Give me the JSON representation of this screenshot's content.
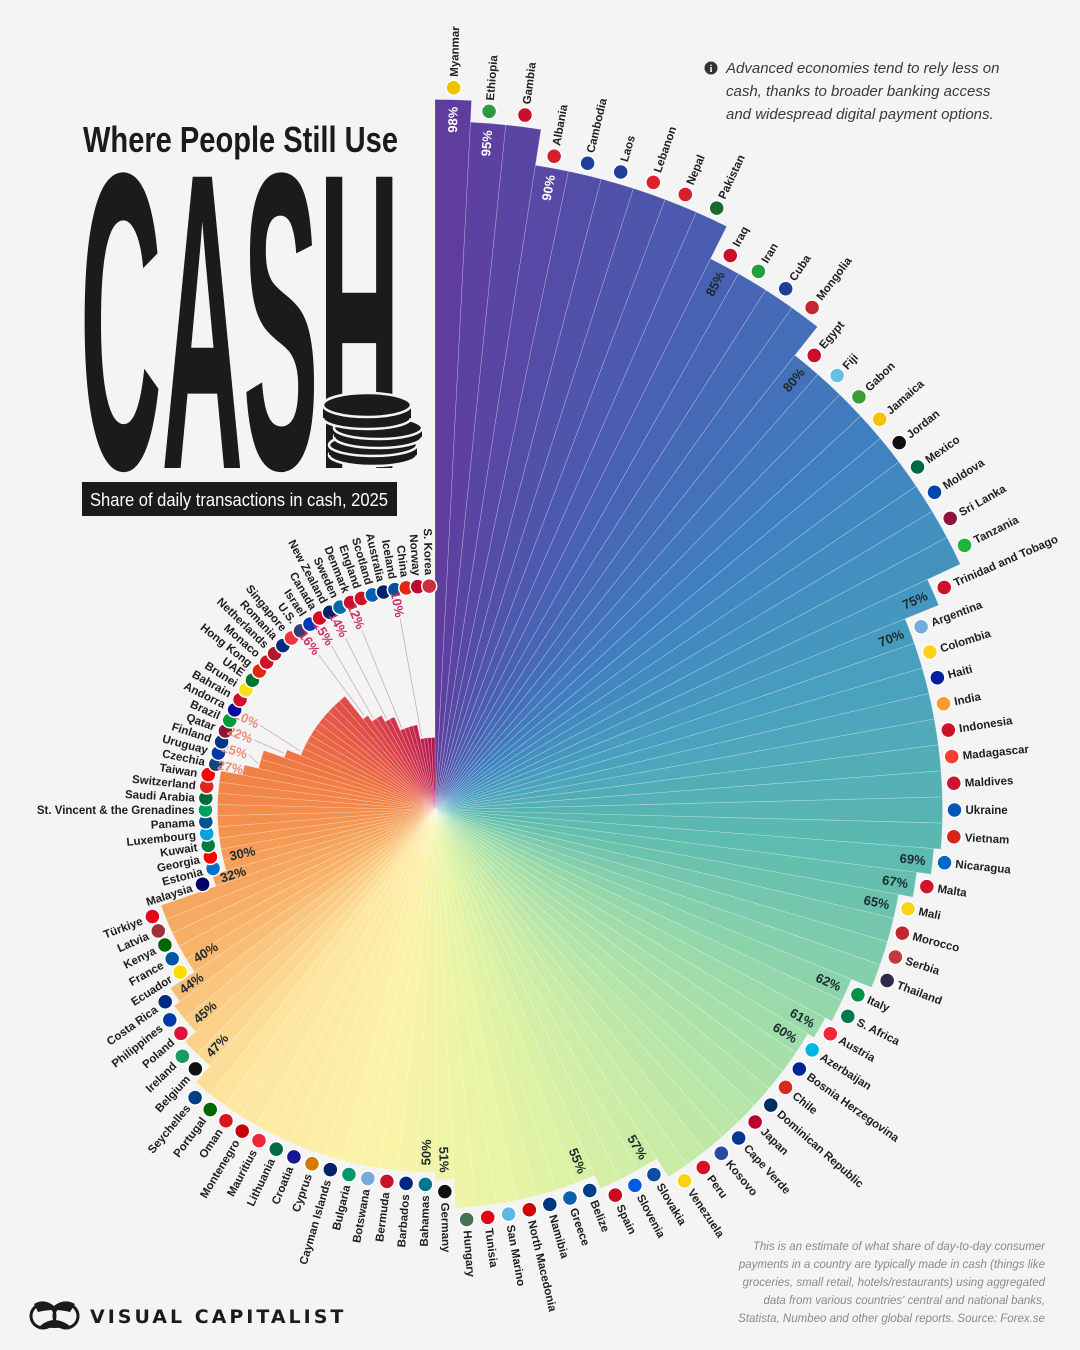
{
  "header": {
    "title_line": "Where People Still Use",
    "title_big": "CASH",
    "subtitle": "Share of daily transactions in cash, 2025"
  },
  "note": {
    "icon": "info-icon",
    "lines": [
      "Advanced economies tend to rely less on",
      "cash, thanks to broader banking access",
      "and widespread digital payment options."
    ]
  },
  "footer": {
    "lines": [
      "This is an estimate of what share of day-to-day consumer",
      "payments in a country are typically made in cash (things like",
      "groceries, small retail, hotels/restaurants) using aggregated",
      "data from various countries' central and national banks,",
      "Statista, Numbeo and other global reports. Source: Forex.se"
    ],
    "brand": "VISUAL CAPITALIST"
  },
  "chart_data": {
    "type": "radial-bar",
    "title": "Share of daily transactions in cash, 2025",
    "unit": "%",
    "value_range": [
      0,
      100
    ],
    "color_stops": [
      "#5e3d9e",
      "#4a5db0",
      "#3f80c0",
      "#48a0bf",
      "#5ebcae",
      "#9edcaa",
      "#c6eba6",
      "#e6f5a4",
      "#fcf2a8",
      "#fde6a0",
      "#f8b46a",
      "#f4944f",
      "#ef7a42",
      "#e65a46",
      "#d2344c",
      "#b0174e"
    ],
    "countries": [
      {
        "name": "Myanmar",
        "value": 98,
        "flag": "#f2c200"
      },
      {
        "name": "Ethiopia",
        "value": 95,
        "flag": "#2e9a3e"
      },
      {
        "name": "Gambia",
        "value": 95,
        "flag": "#c8102e"
      },
      {
        "name": "Albania",
        "value": 90,
        "flag": "#d4202a"
      },
      {
        "name": "Cambodia",
        "value": 90,
        "flag": "#1e3f9a"
      },
      {
        "name": "Laos",
        "value": 90,
        "flag": "#1e3f9a"
      },
      {
        "name": "Lebanon",
        "value": 90,
        "flag": "#e0202a"
      },
      {
        "name": "Nepal",
        "value": 90,
        "flag": "#d4202a"
      },
      {
        "name": "Pakistan",
        "value": 90,
        "flag": "#1c6b2c"
      },
      {
        "name": "Iraq",
        "value": 85,
        "flag": "#c8102e"
      },
      {
        "name": "Iran",
        "value": 85,
        "flag": "#239f40"
      },
      {
        "name": "Cuba",
        "value": 85,
        "flag": "#1e3f9a"
      },
      {
        "name": "Mongolia",
        "value": 85,
        "flag": "#c4272f"
      },
      {
        "name": "Egypt",
        "value": 80,
        "flag": "#c8102e"
      },
      {
        "name": "Fiji",
        "value": 80,
        "flag": "#68bfe5"
      },
      {
        "name": "Gabon",
        "value": 80,
        "flag": "#3a9d3a"
      },
      {
        "name": "Jamaica",
        "value": 80,
        "flag": "#f5c400"
      },
      {
        "name": "Jordan",
        "value": 80,
        "flag": "#111111"
      },
      {
        "name": "Mexico",
        "value": 80,
        "flag": "#006847"
      },
      {
        "name": "Moldova",
        "value": 80,
        "flag": "#0046ae"
      },
      {
        "name": "Sri Lanka",
        "value": 80,
        "flag": "#8d153a"
      },
      {
        "name": "Tanzania",
        "value": 80,
        "flag": "#1eb53a"
      },
      {
        "name": "Trinidad and Tobago",
        "value": 75,
        "flag": "#ce1126"
      },
      {
        "name": "Argentina",
        "value": 70,
        "flag": "#74acdf"
      },
      {
        "name": "Colombia",
        "value": 70,
        "flag": "#fcd116"
      },
      {
        "name": "Haiti",
        "value": 70,
        "flag": "#00209f"
      },
      {
        "name": "India",
        "value": 70,
        "flag": "#ff9933"
      },
      {
        "name": "Indonesia",
        "value": 70,
        "flag": "#ce1126"
      },
      {
        "name": "Madagascar",
        "value": 70,
        "flag": "#fc3d32"
      },
      {
        "name": "Maldives",
        "value": 70,
        "flag": "#d21034"
      },
      {
        "name": "Ukraine",
        "value": 70,
        "flag": "#0057b7"
      },
      {
        "name": "Vietnam",
        "value": 70,
        "flag": "#da251d"
      },
      {
        "name": "Nicaragua",
        "value": 69,
        "flag": "#0067c6"
      },
      {
        "name": "Malta",
        "value": 67,
        "flag": "#cf142b"
      },
      {
        "name": "Mali",
        "value": 65,
        "flag": "#fcd116"
      },
      {
        "name": "Morocco",
        "value": 65,
        "flag": "#c1272d"
      },
      {
        "name": "Serbia",
        "value": 65,
        "flag": "#c6363c"
      },
      {
        "name": "Thailand",
        "value": 65,
        "flag": "#2d2a4a"
      },
      {
        "name": "Italy",
        "value": 62,
        "flag": "#009246"
      },
      {
        "name": "S. Africa",
        "value": 62,
        "flag": "#007a4d"
      },
      {
        "name": "Austria",
        "value": 61,
        "flag": "#ed2939"
      },
      {
        "name": "Azerbaijan",
        "value": 60,
        "flag": "#00b5e2"
      },
      {
        "name": "Bosnia Herzegovina",
        "value": 60,
        "flag": "#002395"
      },
      {
        "name": "Chile",
        "value": 60,
        "flag": "#d52b1e"
      },
      {
        "name": "Dominican Republic",
        "value": 60,
        "flag": "#002d62"
      },
      {
        "name": "Japan",
        "value": 60,
        "flag": "#bc002d"
      },
      {
        "name": "Cape Verde",
        "value": 60,
        "flag": "#003893"
      },
      {
        "name": "Kosovo",
        "value": 60,
        "flag": "#244aa5"
      },
      {
        "name": "Peru",
        "value": 60,
        "flag": "#d91023"
      },
      {
        "name": "Venezuela",
        "value": 60,
        "flag": "#fcd116"
      },
      {
        "name": "Slovakia",
        "value": 57,
        "flag": "#0b4ea2"
      },
      {
        "name": "Slovenia",
        "value": 57,
        "flag": "#005ce5"
      },
      {
        "name": "Spain",
        "value": 57,
        "flag": "#c60b1e"
      },
      {
        "name": "Belize",
        "value": 55,
        "flag": "#003f87"
      },
      {
        "name": "Greece",
        "value": 55,
        "flag": "#0d5eaf"
      },
      {
        "name": "Namibia",
        "value": 55,
        "flag": "#003580"
      },
      {
        "name": "North Macedonia",
        "value": 55,
        "flag": "#d20000"
      },
      {
        "name": "San Marino",
        "value": 55,
        "flag": "#5eb6e4"
      },
      {
        "name": "Tunisia",
        "value": 55,
        "flag": "#e70013"
      },
      {
        "name": "Hungary",
        "value": 55,
        "flag": "#477050"
      },
      {
        "name": "Germany",
        "value": 51,
        "flag": "#111111"
      },
      {
        "name": "Bahamas",
        "value": 50,
        "flag": "#00778b"
      },
      {
        "name": "Barbados",
        "value": 50,
        "flag": "#00267f"
      },
      {
        "name": "Bermuda",
        "value": 50,
        "flag": "#c8102e"
      },
      {
        "name": "Botswana",
        "value": 50,
        "flag": "#75aadb"
      },
      {
        "name": "Bulgaria",
        "value": 50,
        "flag": "#00966e"
      },
      {
        "name": "Cayman Islands",
        "value": 50,
        "flag": "#012169"
      },
      {
        "name": "Cyprus",
        "value": 50,
        "flag": "#d57800"
      },
      {
        "name": "Croatia",
        "value": 50,
        "flag": "#171796"
      },
      {
        "name": "Lithuania",
        "value": 50,
        "flag": "#006a44"
      },
      {
        "name": "Mauritius",
        "value": 50,
        "flag": "#ea2839"
      },
      {
        "name": "Montenegro",
        "value": 50,
        "flag": "#c40308"
      },
      {
        "name": "Oman",
        "value": 50,
        "flag": "#db161b"
      },
      {
        "name": "Portugal",
        "value": 50,
        "flag": "#006600"
      },
      {
        "name": "Seychelles",
        "value": 50,
        "flag": "#003f87"
      },
      {
        "name": "Belgium",
        "value": 47,
        "flag": "#111111"
      },
      {
        "name": "Ireland",
        "value": 47,
        "flag": "#169b62"
      },
      {
        "name": "Poland",
        "value": 45,
        "flag": "#dc143c"
      },
      {
        "name": "Philippines",
        "value": 45,
        "flag": "#0038a8"
      },
      {
        "name": "Costa Rica",
        "value": 44,
        "flag": "#002b7f"
      },
      {
        "name": "Ecuador",
        "value": 40,
        "flag": "#ffdd00"
      },
      {
        "name": "France",
        "value": 40,
        "flag": "#0055a4"
      },
      {
        "name": "Kenya",
        "value": 40,
        "flag": "#006600"
      },
      {
        "name": "Latvia",
        "value": 40,
        "flag": "#9e3039"
      },
      {
        "name": "Türkiye",
        "value": 40,
        "flag": "#e30a17"
      },
      {
        "name": "Malaysia",
        "value": 32,
        "flag": "#010066"
      },
      {
        "name": "Estonia",
        "value": 30,
        "flag": "#0072ce"
      },
      {
        "name": "Georgia",
        "value": 30,
        "flag": "#ff0000"
      },
      {
        "name": "Kuwait",
        "value": 30,
        "flag": "#007a3d"
      },
      {
        "name": "Luxembourg",
        "value": 30,
        "flag": "#00a1de"
      },
      {
        "name": "Panama",
        "value": 30,
        "flag": "#005293"
      },
      {
        "name": "St. Vincent & the Grenadines",
        "value": 30,
        "flag": "#009e60"
      },
      {
        "name": "Saudi Arabia",
        "value": 30,
        "flag": "#006c35"
      },
      {
        "name": "Switzerland",
        "value": 30,
        "flag": "#da291c"
      },
      {
        "name": "Taiwan",
        "value": 30,
        "flag": "#fe0000"
      },
      {
        "name": "Czechia",
        "value": 27,
        "flag": "#11457e"
      },
      {
        "name": "Uruguay",
        "value": 25,
        "flag": "#0038a8"
      },
      {
        "name": "Finland",
        "value": 25,
        "flag": "#003580"
      },
      {
        "name": "Qatar",
        "value": 22,
        "flag": "#8a1538"
      },
      {
        "name": "Brazil",
        "value": 20,
        "flag": "#009c3b"
      },
      {
        "name": "Andorra",
        "value": 20,
        "flag": "#10069f"
      },
      {
        "name": "Bahrain",
        "value": 20,
        "flag": "#ce1126"
      },
      {
        "name": "Brunei",
        "value": 20,
        "flag": "#f7e017"
      },
      {
        "name": "UAE",
        "value": 20,
        "flag": "#00732f"
      },
      {
        "name": "Hong Kong",
        "value": 20,
        "flag": "#de2910"
      },
      {
        "name": "Monaco",
        "value": 20,
        "flag": "#ce1126"
      },
      {
        "name": "Netherlands",
        "value": 20,
        "flag": "#ae1c28"
      },
      {
        "name": "Romania",
        "value": 20,
        "flag": "#002b7f"
      },
      {
        "name": "Singapore",
        "value": 20,
        "flag": "#ef3340"
      },
      {
        "name": "U.S.",
        "value": 16,
        "flag": "#3c3b6e"
      },
      {
        "name": "Israel",
        "value": 15,
        "flag": "#0038b8"
      },
      {
        "name": "Canada",
        "value": 15,
        "flag": "#d80621"
      },
      {
        "name": "New Zealand",
        "value": 14,
        "flag": "#012169"
      },
      {
        "name": "Sweden",
        "value": 14,
        "flag": "#006aa7"
      },
      {
        "name": "Denmark",
        "value": 12,
        "flag": "#c8102e"
      },
      {
        "name": "England",
        "value": 12,
        "flag": "#ce1124"
      },
      {
        "name": "Scotland",
        "value": 12,
        "flag": "#005eb8"
      },
      {
        "name": "Australia",
        "value": 12,
        "flag": "#012169"
      },
      {
        "name": "Iceland",
        "value": 10,
        "flag": "#02529c"
      },
      {
        "name": "China",
        "value": 10,
        "flag": "#de2910"
      },
      {
        "name": "Norway",
        "value": 10,
        "flag": "#ba0c2f"
      },
      {
        "name": "S. Korea",
        "value": 10,
        "flag": "#cd2e3a"
      }
    ]
  }
}
